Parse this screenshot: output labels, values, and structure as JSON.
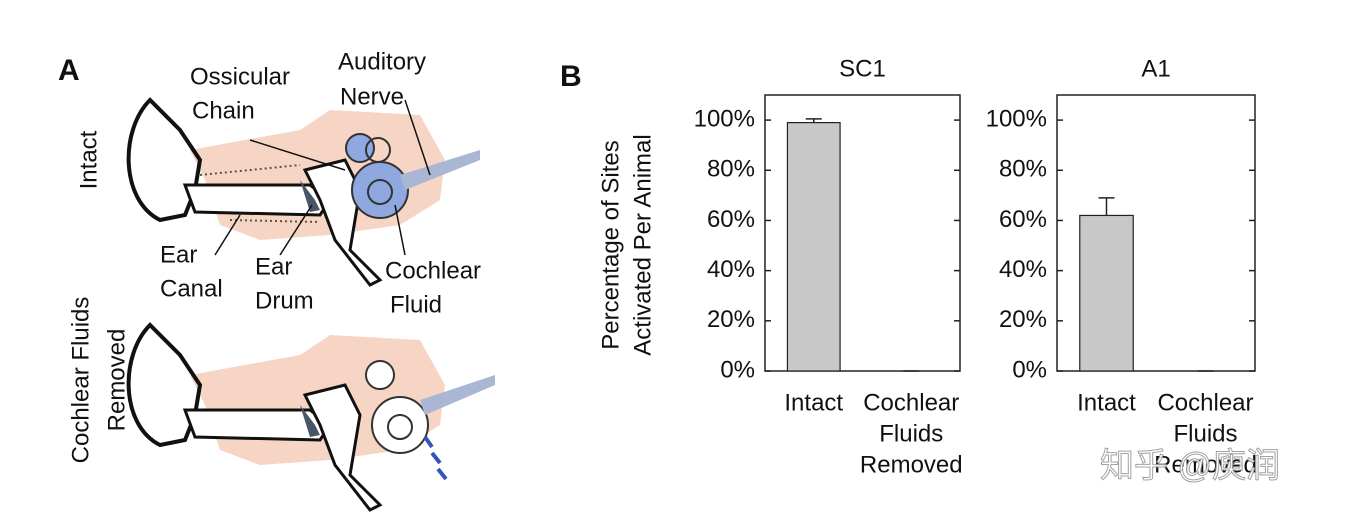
{
  "panel_a": {
    "label": "A",
    "intact": "Intact",
    "removed": [
      "Cochlear Fluids",
      "Removed"
    ],
    "ossicular_chain": [
      "Ossicular",
      "Chain"
    ],
    "auditory_nerve": [
      "Auditory",
      "Nerve"
    ],
    "ear_canal": [
      "Ear",
      "Canal"
    ],
    "ear_drum": [
      "Ear",
      "Drum"
    ],
    "cochlear_fluid": [
      "Cochlear",
      "Fluid"
    ]
  },
  "panel_b": {
    "label": "B"
  },
  "watermark": "知乎 @庾润",
  "chart_data": [
    {
      "type": "bar",
      "title": "SC1",
      "ylabel": [
        "Percentage of Sites",
        "Activated Per Animal"
      ],
      "categories": [
        [
          "Intact"
        ],
        [
          "Cochlear",
          "Fluids",
          "Removed"
        ]
      ],
      "values": [
        99,
        0
      ],
      "errors": [
        1.5,
        0
      ],
      "color": "#c8c8c8",
      "ylim": [
        0,
        110
      ],
      "yticks": [
        {
          "value": 0,
          "label": "0%"
        },
        {
          "value": 20,
          "label": "20%"
        },
        {
          "value": 40,
          "label": "40%"
        },
        {
          "value": 60,
          "label": "60%"
        },
        {
          "value": 80,
          "label": "80%"
        },
        {
          "value": 100,
          "label": "100%"
        }
      ]
    },
    {
      "type": "bar",
      "title": "A1",
      "categories": [
        [
          "Intact"
        ],
        [
          "Cochlear",
          "Fluids",
          "Removed"
        ]
      ],
      "values": [
        62,
        0
      ],
      "errors": [
        7,
        0
      ],
      "color": "#c8c8c8",
      "ylim": [
        0,
        110
      ],
      "yticks": [
        {
          "value": 0,
          "label": "0%"
        },
        {
          "value": 20,
          "label": "20%"
        },
        {
          "value": 40,
          "label": "40%"
        },
        {
          "value": 60,
          "label": "60%"
        },
        {
          "value": 80,
          "label": "80%"
        },
        {
          "value": 100,
          "label": "100%"
        }
      ]
    }
  ]
}
